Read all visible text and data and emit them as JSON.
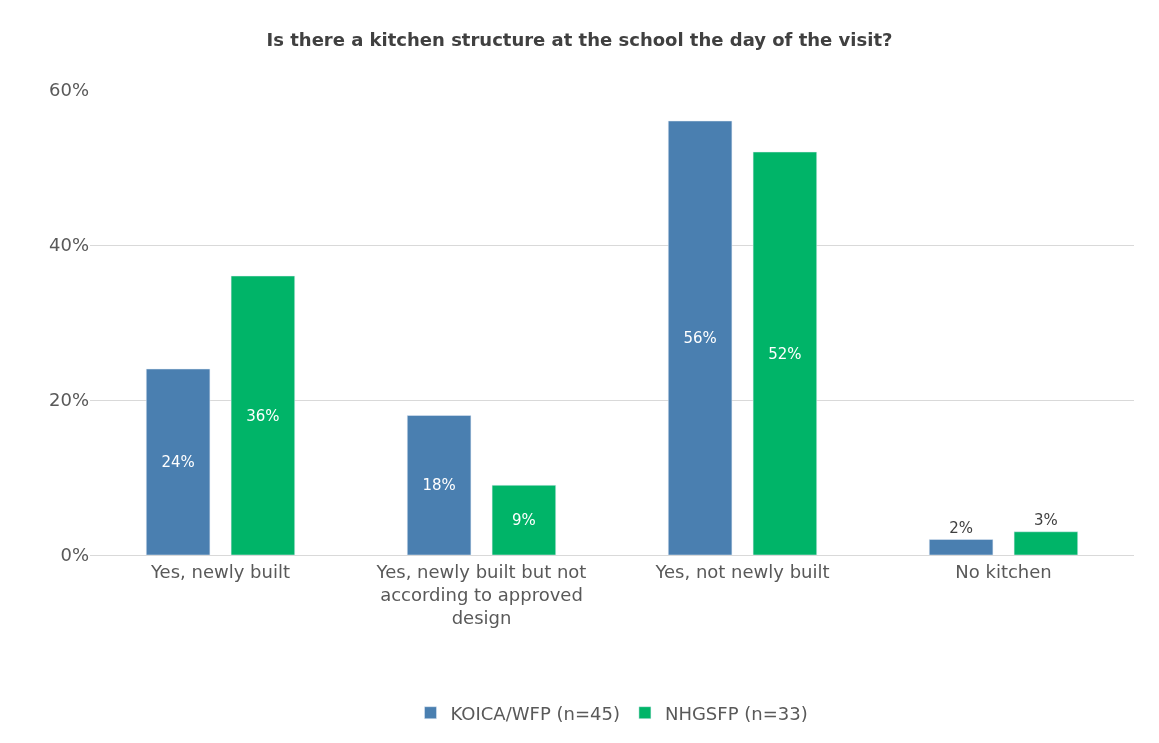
{
  "chart_data": {
    "type": "bar",
    "title": "Is there a kitchen structure at the school the day of the visit?",
    "categories": [
      "Yes, newly built",
      "Yes, newly built but not according to approved design",
      "Yes, not newly built",
      "No kitchen"
    ],
    "series": [
      {
        "name": "KOICA/WFP (n=45)",
        "color": "#4a7fb0",
        "values": [
          24,
          18,
          56,
          2
        ],
        "value_labels": [
          "24%",
          "18%",
          "56%",
          "2%"
        ]
      },
      {
        "name": "NHGSFP (n=33)",
        "color": "#00b468",
        "values": [
          36,
          9,
          52,
          3
        ],
        "value_labels": [
          "36%",
          "9%",
          "52%",
          "3%"
        ]
      }
    ],
    "ylim": [
      0,
      60
    ],
    "yticks": [
      {
        "value": 0,
        "label": "0%"
      },
      {
        "value": 20,
        "label": "20%"
      },
      {
        "value": 40,
        "label": "40%"
      },
      {
        "value": 60,
        "label": "60%"
      }
    ],
    "grid": "y",
    "legend": "bottom"
  }
}
